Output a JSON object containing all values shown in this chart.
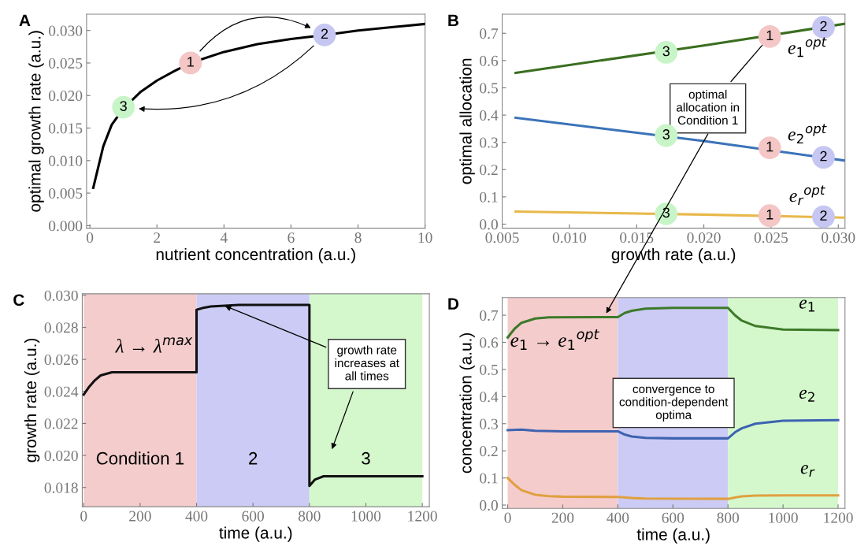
{
  "chart_data": [
    {
      "type": "line",
      "title": "A",
      "xlabel": "nutrient concentration (a.u.)",
      "ylabel": "optimal growth rate (a.u.)",
      "xlim": [
        -0.1,
        10
      ],
      "ylim": [
        -0.0004,
        0.0325
      ],
      "xticks": [
        0,
        2,
        4,
        6,
        8,
        10
      ],
      "yticks": [
        {
          "value": 0,
          "label": "0.000"
        },
        {
          "value": 0.005,
          "label": "0.005"
        },
        {
          "value": 0.01,
          "label": "0.010"
        },
        {
          "value": 0.015,
          "label": "0.015"
        },
        {
          "value": 0.02,
          "label": "0.020"
        },
        {
          "value": 0.025,
          "label": "0.025"
        },
        {
          "value": 0.03,
          "label": "0.030"
        }
      ],
      "grid": false,
      "annotations": [
        {
          "text": "1",
          "x": 3,
          "y": 0.025
        },
        {
          "text": "2",
          "x": 7,
          "y": 0.0293
        },
        {
          "text": "3",
          "x": 1,
          "y": 0.0182
        }
      ],
      "series": [
        {
          "color": "#000000",
          "x": [
            0.1,
            0.4,
            0.65,
            1,
            1.5,
            2,
            2.5,
            3,
            4,
            5,
            6,
            7,
            8,
            9,
            10
          ],
          "values": [
            0.0058,
            0.0122,
            0.0155,
            0.018,
            0.0205,
            0.0223,
            0.0237,
            0.025,
            0.0267,
            0.0279,
            0.0287,
            0.0293,
            0.03,
            0.0305,
            0.031
          ]
        },
        {
          "type": "scatter",
          "marker": "circle",
          "x": [
            3,
            7,
            1
          ],
          "values": [
            0.025,
            0.0293,
            0.0182
          ],
          "colors": [
            "#f4c6c6",
            "#c6c6f2",
            "#c8f5c8"
          ]
        }
      ]
    },
    {
      "type": "line",
      "title": "B",
      "xlabel": "growth rate (a.u.)",
      "ylabel": "optimal allocation",
      "xlim": [
        0.005,
        0.0305
      ],
      "ylim": [
        -0.015,
        0.77
      ],
      "xticks": [
        {
          "value": 0.005,
          "label": "0.005"
        },
        {
          "value": 0.01,
          "label": "0.010"
        },
        {
          "value": 0.015,
          "label": "0.015"
        },
        {
          "value": 0.02,
          "label": "0.020"
        },
        {
          "value": 0.025,
          "label": "0.025"
        },
        {
          "value": 0.03,
          "label": "0.030"
        }
      ],
      "yticks": [
        {
          "value": 0,
          "label": "0.0"
        },
        0.1,
        0.2,
        0.3,
        0.4,
        0.5,
        0.6,
        0.7
      ],
      "grid": false,
      "annotations": [
        {
          "text": "optimal\nallocation in\nCondition 1",
          "x": 0.0249,
          "y": 0.688
        },
        {
          "text": "3",
          "x": 0.0172,
          "y": 0.63
        },
        {
          "text": "1",
          "x": 0.0249,
          "y": 0.688
        },
        {
          "text": "2",
          "x": 0.0289,
          "y": 0.722
        },
        {
          "text": "3",
          "x": 0.0172,
          "y": 0.325
        },
        {
          "text": "1",
          "x": 0.0249,
          "y": 0.28
        },
        {
          "text": "2",
          "x": 0.0289,
          "y": 0.245
        },
        {
          "text": "3",
          "x": 0.0172,
          "y": 0.038
        },
        {
          "text": "1",
          "x": 0.0249,
          "y": 0.031
        },
        {
          "text": "2",
          "x": 0.0289,
          "y": 0.027
        }
      ],
      "series": [
        {
          "name": "e$_{1}$$^{opt}$",
          "color": "#3a6e1f",
          "x": [
            0.006,
            0.02,
            0.0305
          ],
          "values": [
            0.555,
            0.655,
            0.735
          ]
        },
        {
          "name": "e$_{2}$$^{opt}$",
          "color": "#3b73b9",
          "x": [
            0.006,
            0.02,
            0.0305
          ],
          "values": [
            0.39,
            0.305,
            0.233
          ]
        },
        {
          "name": "e$_{r}$$^{opt}$",
          "color": "#e8b84a",
          "x": [
            0.006,
            0.02,
            0.0305
          ],
          "values": [
            0.046,
            0.035,
            0.024
          ]
        },
        {
          "type": "scatter",
          "marker": "circle",
          "x": [
            0.0172,
            0.0249,
            0.0289
          ],
          "values": [
            0.63,
            0.688,
            0.722
          ],
          "colors": [
            "#c8f5c8",
            "#f4c6c6",
            "#c6c6f2"
          ]
        },
        {
          "type": "scatter",
          "marker": "circle",
          "x": [
            0.0172,
            0.0249,
            0.0289
          ],
          "values": [
            0.325,
            0.28,
            0.245
          ],
          "colors": [
            "#c8f5c8",
            "#f4c6c6",
            "#c6c6f2"
          ]
        },
        {
          "type": "scatter",
          "marker": "circle",
          "x": [
            0.0172,
            0.0249,
            0.0289
          ],
          "values": [
            0.038,
            0.031,
            0.027
          ],
          "colors": [
            "#c8f5c8",
            "#f4c6c6",
            "#c6c6f2"
          ]
        }
      ]
    },
    {
      "type": "line",
      "title": "C",
      "xlabel": "time (a.u.)",
      "ylabel": "growth rate (a.u.)",
      "xlim": [
        -5,
        1225
      ],
      "ylim": [
        0.0168,
        0.0301
      ],
      "xticks": [
        0,
        200,
        400,
        600,
        800,
        1000,
        1200
      ],
      "yticks": [
        {
          "value": 0.018,
          "label": "0.018"
        },
        {
          "value": 0.02,
          "label": "0.020"
        },
        {
          "value": 0.022,
          "label": "0.022"
        },
        {
          "value": 0.024,
          "label": "0.024"
        },
        {
          "value": 0.026,
          "label": "0.026"
        },
        {
          "value": 0.028,
          "label": "0.028"
        },
        {
          "value": 0.03,
          "label": "0.030"
        }
      ],
      "grid": false,
      "bands": [
        {
          "axis": "x",
          "from": 0,
          "to": 400,
          "label": "Condition 1",
          "color": "#f4cccc"
        },
        {
          "axis": "x",
          "from": 400,
          "to": 800,
          "label": "2",
          "color": "#cbcbf5"
        },
        {
          "axis": "x",
          "from": 800,
          "to": 1200,
          "label": "3",
          "color": "#d4f8cc"
        }
      ],
      "annotations": [
        {
          "text": "λ → λ$^{max}$",
          "x": 250,
          "y": 0.0252
        },
        {
          "text": "growth rate\nincreases at\nall times",
          "x": 500,
          "y": 0.02935
        }
      ],
      "series": [
        {
          "color": "#111111",
          "x": [
            0,
            20,
            40,
            60,
            80,
            100,
            150,
            400,
            400,
            420,
            450,
            500,
            550,
            800,
            800,
            820,
            850,
            900,
            1200
          ],
          "values": [
            0.0238,
            0.0243,
            0.0247,
            0.025,
            0.0251,
            0.0252,
            0.0252,
            0.0252,
            0.0291,
            0.0292,
            0.0293,
            0.02935,
            0.0294,
            0.0294,
            0.0181,
            0.0185,
            0.0187,
            0.0187,
            0.0187
          ]
        }
      ]
    },
    {
      "type": "line",
      "title": "D",
      "xlabel": "time (a.u.)",
      "ylabel": "concentration (a.u.)",
      "xlim": [
        -20,
        1225
      ],
      "ylim": [
        -0.012,
        0.765
      ],
      "xticks": [
        0,
        200,
        400,
        600,
        800,
        1000,
        1200
      ],
      "yticks": [
        {
          "value": 0,
          "label": "0.0"
        },
        0.1,
        0.2,
        0.3,
        0.4,
        0.5,
        0.6,
        0.7
      ],
      "grid": false,
      "bands": [
        {
          "axis": "x",
          "from": 0,
          "to": 400,
          "color": "#f4cccc"
        },
        {
          "axis": "x",
          "from": 400,
          "to": 800,
          "color": "#cbcbf5"
        },
        {
          "axis": "x",
          "from": 800,
          "to": 1200,
          "color": "#d4f8cc"
        }
      ],
      "annotations": [
        {
          "text": "e$_{1}$ → e$_{1}$$^{opt}$",
          "x": 350,
          "y": 0.693
        },
        "convergence to\ncondition-dependent\noptima"
      ],
      "series": [
        {
          "name": "e$_{1}$",
          "color": "#3d7a2a",
          "x": [
            0,
            25,
            50,
            100,
            150,
            400,
            425,
            450,
            500,
            600,
            800,
            825,
            850,
            900,
            1000,
            1200
          ],
          "values": [
            0.618,
            0.65,
            0.672,
            0.688,
            0.692,
            0.693,
            0.708,
            0.716,
            0.724,
            0.727,
            0.727,
            0.7,
            0.68,
            0.66,
            0.647,
            0.645
          ]
        },
        {
          "name": "e$_{2}$",
          "color": "#3e62b0",
          "x": [
            0,
            50,
            100,
            200,
            400,
            425,
            450,
            500,
            600,
            800,
            825,
            850,
            900,
            1000,
            1200
          ],
          "values": [
            0.276,
            0.278,
            0.274,
            0.272,
            0.272,
            0.26,
            0.253,
            0.248,
            0.246,
            0.246,
            0.268,
            0.283,
            0.3,
            0.311,
            0.313
          ]
        },
        {
          "name": "e$_{r}$",
          "color": "#e0a040",
          "x": [
            0,
            25,
            50,
            100,
            150,
            200,
            400,
            450,
            500,
            800,
            825,
            850,
            900,
            1000,
            1200
          ],
          "values": [
            0.1,
            0.075,
            0.055,
            0.038,
            0.033,
            0.031,
            0.03,
            0.026,
            0.024,
            0.023,
            0.028,
            0.032,
            0.035,
            0.036,
            0.036
          ]
        }
      ]
    }
  ]
}
